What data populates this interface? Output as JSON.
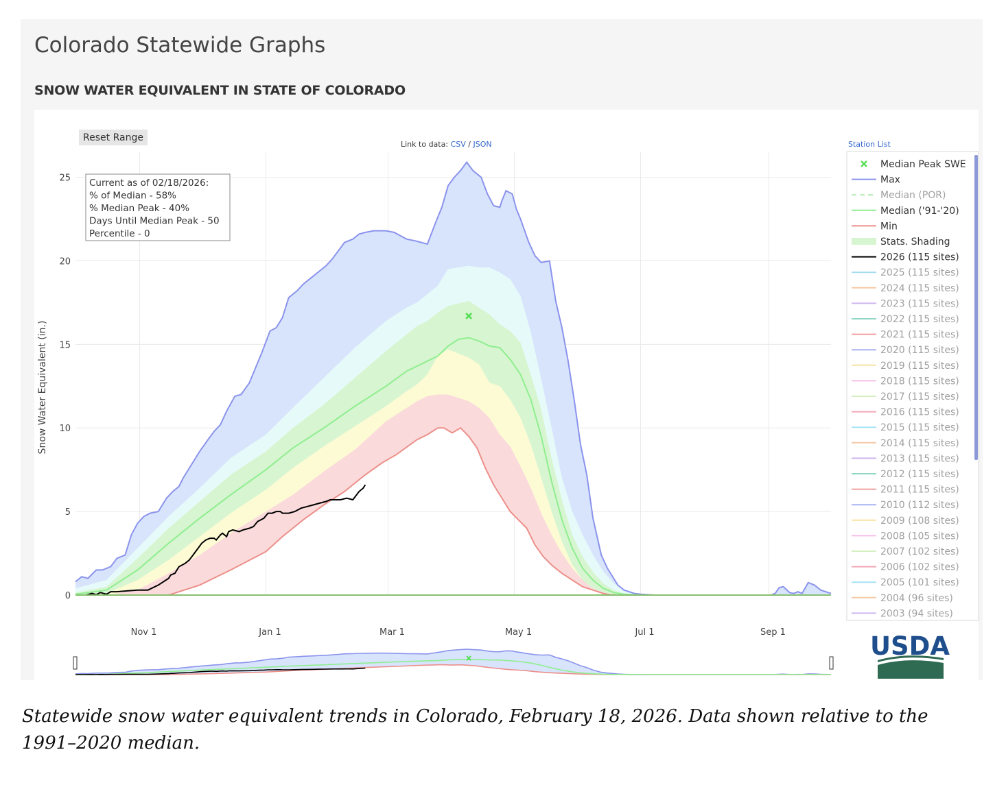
{
  "page": {
    "title": "Colorado Statewide Graphs",
    "chart_heading": "SNOW WATER EQUIVALENT IN STATE OF COLORADO",
    "caption": "Statewide snow water equivalent trends in Colorado, February 18, 2026. Data shown relative to the 1991–2020 median."
  },
  "controls": {
    "reset_label": "Reset Range",
    "link_prefix": "Link to data:",
    "link_csv": "CSV",
    "link_sep": "/",
    "link_json": "JSON",
    "station_list": "Station List"
  },
  "info_box": [
    "Current as of 02/18/2026:",
    "% of Median - 58%",
    "% Median Peak - 40%",
    "Days Until Median Peak - 50",
    "Percentile - 0"
  ],
  "logo_text": "USDA",
  "colors": {
    "max": "#8b93ec",
    "min": "#ec8f8a",
    "median": "#90ee90",
    "current": "#000000",
    "band_blue": "#d7e4fb",
    "band_cyan": "#e6fafa",
    "band_green": "#d6f5d0",
    "band_yellow": "#fdfbd3",
    "band_red": "#fadada",
    "link": "#3366cc"
  },
  "chart_data": {
    "type": "area",
    "ylabel": "Snow Water Equivalent (in.)",
    "xlabel": "",
    "ylim": [
      0,
      26.5
    ],
    "xrange": [
      "Oct 1",
      "Sep 30"
    ],
    "yticks": [
      0,
      5,
      10,
      15,
      20,
      25
    ],
    "xticks": [
      {
        "label": "Nov  1",
        "day": 31
      },
      {
        "label": "Jan  1",
        "day": 92
      },
      {
        "label": "Mar  1",
        "day": 151
      },
      {
        "label": "May  1",
        "day": 212
      },
      {
        "label": "Jul  1",
        "day": 273
      },
      {
        "label": "Sep  1",
        "day": 335
      }
    ],
    "grid": true,
    "legend_position": "right",
    "x_units": "days since Oct 1",
    "series": [
      {
        "name": "Max",
        "x": [
          0,
          3,
          6,
          10,
          13,
          17,
          20,
          24,
          27,
          30,
          33,
          36,
          40,
          44,
          47,
          50,
          52,
          56,
          60,
          64,
          67,
          70,
          73,
          77,
          80,
          84,
          87,
          90,
          94,
          97,
          100,
          103,
          107,
          110,
          114,
          118,
          121,
          124,
          127,
          130,
          134,
          137,
          140,
          144,
          147,
          150,
          154,
          157,
          160,
          164,
          167,
          170,
          174,
          177,
          180,
          183,
          186,
          189,
          192,
          196,
          199,
          202,
          205,
          206,
          208,
          211,
          213,
          215,
          219,
          222,
          225,
          229,
          232,
          235,
          238,
          241,
          244,
          247,
          250,
          254,
          257,
          260,
          262,
          265,
          270,
          273,
          277,
          280,
          285,
          290,
          300,
          310,
          320,
          330,
          336,
          338,
          340,
          342,
          345,
          347,
          349,
          351,
          354,
          357,
          360,
          365
        ],
        "y": [
          0.8,
          1.1,
          1.0,
          1.5,
          1.5,
          1.7,
          2.2,
          2.4,
          3.6,
          4.3,
          4.7,
          4.9,
          5.0,
          5.8,
          6.2,
          6.5,
          7.0,
          7.8,
          8.6,
          9.3,
          9.8,
          10.2,
          11.0,
          11.9,
          12.0,
          12.7,
          13.6,
          14.5,
          15.8,
          16.0,
          16.6,
          17.8,
          18.2,
          18.6,
          19.0,
          19.4,
          19.7,
          20.1,
          20.6,
          21.1,
          21.3,
          21.6,
          21.7,
          21.8,
          21.8,
          21.8,
          21.7,
          21.5,
          21.3,
          21.2,
          21.1,
          21.0,
          22.3,
          23.2,
          24.5,
          25.0,
          25.4,
          25.9,
          25.4,
          25.0,
          24.0,
          23.3,
          23.2,
          23.6,
          24.2,
          24.0,
          23.1,
          22.5,
          21.1,
          20.3,
          19.9,
          20.0,
          17.6,
          16.0,
          14.0,
          11.6,
          9.0,
          7.2,
          4.6,
          2.4,
          1.6,
          1.0,
          0.6,
          0.3,
          0.1,
          0.05,
          0.02,
          0,
          0,
          0,
          0,
          0,
          0,
          0,
          0,
          0.1,
          0.45,
          0.5,
          0.15,
          0.1,
          0.2,
          0.1,
          0.75,
          0.6,
          0.3,
          0.1
        ]
      },
      {
        "name": "Median ('91-'20)",
        "x": [
          0,
          15,
          30,
          45,
          60,
          75,
          92,
          105,
          120,
          135,
          150,
          160,
          170,
          175,
          180,
          185,
          190,
          195,
          200,
          205,
          210,
          215,
          220,
          225,
          230,
          235,
          240,
          245,
          250,
          255,
          260,
          265,
          273,
          280,
          300,
          365
        ],
        "y": [
          0.05,
          0.3,
          1.5,
          3.1,
          4.6,
          6.0,
          7.5,
          8.8,
          10.0,
          11.3,
          12.5,
          13.4,
          14.0,
          14.3,
          14.9,
          15.3,
          15.4,
          15.2,
          14.9,
          14.8,
          14.1,
          13.2,
          11.7,
          9.5,
          6.8,
          4.5,
          2.8,
          1.6,
          0.9,
          0.4,
          0.15,
          0.05,
          0,
          0,
          0,
          0
        ]
      },
      {
        "name": "Min",
        "x": [
          0,
          45,
          60,
          75,
          92,
          100,
          110,
          120,
          130,
          140,
          148,
          155,
          165,
          170,
          175,
          178,
          182,
          186,
          190,
          194,
          198,
          202,
          206,
          210,
          214,
          218,
          222,
          226,
          230,
          235,
          240,
          245,
          250,
          255,
          258,
          262,
          265,
          273,
          300,
          365
        ],
        "y": [
          0,
          0,
          0.6,
          1.5,
          2.6,
          3.5,
          4.5,
          5.4,
          6.2,
          7.2,
          7.9,
          8.4,
          9.3,
          9.6,
          10.0,
          10.0,
          9.7,
          10.0,
          9.5,
          8.8,
          7.6,
          6.6,
          5.8,
          5.0,
          4.5,
          4.0,
          3.0,
          2.3,
          1.8,
          1.3,
          0.9,
          0.5,
          0.3,
          0.1,
          0.02,
          0,
          0,
          0,
          0,
          0
        ]
      },
      {
        "name": "2026 (115 sites)",
        "x": [
          0,
          5,
          8,
          10,
          12,
          15,
          17,
          20,
          25,
          30,
          35,
          40,
          45,
          46,
          48,
          50,
          53,
          55,
          58,
          61,
          63,
          65,
          67,
          68,
          70,
          71,
          73,
          74,
          76,
          79,
          81,
          84,
          86,
          88,
          91,
          93,
          95,
          97,
          99,
          100,
          103,
          106,
          109,
          112,
          115,
          118,
          121,
          123,
          125,
          128,
          131,
          134,
          137,
          139,
          140
        ],
        "y": [
          0,
          0,
          0.1,
          0.02,
          0.15,
          0.05,
          0.2,
          0.2,
          0.25,
          0.3,
          0.3,
          0.6,
          1.0,
          1.2,
          1.3,
          1.7,
          1.9,
          2.1,
          2.6,
          3.1,
          3.3,
          3.4,
          3.4,
          3.3,
          3.6,
          3.7,
          3.5,
          3.8,
          3.9,
          3.8,
          3.9,
          4.0,
          4.1,
          4.4,
          4.6,
          4.9,
          4.9,
          5.0,
          5.0,
          4.9,
          4.9,
          5.0,
          5.2,
          5.3,
          5.4,
          5.5,
          5.6,
          5.7,
          5.7,
          5.7,
          5.8,
          5.7,
          6.2,
          6.4,
          6.6
        ]
      }
    ],
    "bands": [
      {
        "name": "Stats. Shading",
        "x": [
          0,
          15,
          30,
          45,
          60,
          75,
          92,
          105,
          120,
          135,
          150,
          160,
          165,
          170,
          175,
          180,
          190,
          195,
          200,
          205,
          210,
          215,
          220,
          225,
          230,
          235,
          240,
          245,
          250,
          255,
          260,
          265,
          270,
          273,
          300,
          365
        ],
        "p90": [
          0.4,
          0.9,
          2.8,
          4.7,
          6.4,
          8.2,
          9.6,
          11.2,
          13.0,
          14.8,
          16.4,
          17.2,
          17.5,
          18.0,
          18.5,
          19.5,
          19.7,
          19.6,
          19.6,
          19.3,
          18.9,
          17.9,
          15.7,
          12.9,
          10.0,
          7.0,
          5.0,
          3.6,
          2.4,
          1.4,
          0.7,
          0.3,
          0.1,
          0.02,
          0,
          0
        ],
        "p70": [
          0.15,
          0.5,
          2.2,
          4.0,
          5.6,
          7.2,
          8.6,
          10.0,
          11.4,
          13.0,
          14.6,
          15.6,
          16.1,
          16.4,
          16.9,
          17.3,
          17.6,
          17.2,
          16.8,
          16.2,
          15.8,
          15.1,
          13.2,
          11.1,
          8.2,
          5.7,
          3.6,
          2.3,
          1.4,
          0.7,
          0.3,
          0.1,
          0.03,
          0,
          0,
          0
        ],
        "p30": [
          0,
          0.1,
          0.9,
          2.1,
          3.5,
          4.9,
          6.3,
          7.6,
          8.9,
          10.1,
          11.3,
          12.2,
          12.6,
          13.2,
          14.3,
          14.7,
          14.2,
          13.8,
          12.7,
          12.5,
          11.7,
          10.6,
          9.0,
          7.0,
          5.0,
          3.2,
          1.8,
          0.9,
          0.4,
          0.15,
          0.03,
          0,
          0,
          0,
          0,
          0
        ],
        "p10": [
          0,
          0,
          0.3,
          1.3,
          2.4,
          3.7,
          5.0,
          6.0,
          7.4,
          8.7,
          10.4,
          11.2,
          11.6,
          11.9,
          12.0,
          12.0,
          11.6,
          11.2,
          10.6,
          9.6,
          8.9,
          7.7,
          6.4,
          4.9,
          3.6,
          2.5,
          1.6,
          0.9,
          0.4,
          0.15,
          0.03,
          0,
          0,
          0,
          0,
          0
        ]
      }
    ],
    "points": [
      {
        "name": "Median Peak SWE",
        "x": 190,
        "y": 16.7
      }
    ],
    "legend": [
      {
        "label": "Median Peak SWE",
        "kind": "marker",
        "color": "#55dd55",
        "active": true
      },
      {
        "label": "Max",
        "kind": "line",
        "color": "#8b93ec",
        "active": true
      },
      {
        "label": "Median (POR)",
        "kind": "dash",
        "color": "#b0ecb0",
        "active": false
      },
      {
        "label": "Median ('91-'20)",
        "kind": "line",
        "color": "#90ee90",
        "active": true
      },
      {
        "label": "Min",
        "kind": "line",
        "color": "#ec8f8a",
        "active": true
      },
      {
        "label": "Stats. Shading",
        "kind": "fill",
        "color": "#d6f5d0",
        "active": true
      },
      {
        "label": "2026 (115 sites)",
        "kind": "line",
        "color": "#000000",
        "active": true
      },
      {
        "label": "2025 (115 sites)",
        "kind": "line",
        "color": "#a6dcf2",
        "active": false
      },
      {
        "label": "2024 (115 sites)",
        "kind": "line",
        "color": "#f6c9a6",
        "active": false
      },
      {
        "label": "2023 (115 sites)",
        "kind": "line",
        "color": "#cdb6f0",
        "active": false
      },
      {
        "label": "2022 (115 sites)",
        "kind": "line",
        "color": "#8fd6c5",
        "active": false
      },
      {
        "label": "2021 (115 sites)",
        "kind": "line",
        "color": "#f0a0a0",
        "active": false
      },
      {
        "label": "2020 (115 sites)",
        "kind": "line",
        "color": "#a9b4f0",
        "active": false
      },
      {
        "label": "2019 (115 sites)",
        "kind": "line",
        "color": "#f8e4a0",
        "active": false
      },
      {
        "label": "2018 (115 sites)",
        "kind": "line",
        "color": "#f4c0e8",
        "active": false
      },
      {
        "label": "2017 (115 sites)",
        "kind": "line",
        "color": "#d6efc0",
        "active": false
      },
      {
        "label": "2016 (115 sites)",
        "kind": "line",
        "color": "#f3a6b6",
        "active": false
      },
      {
        "label": "2015 (115 sites)",
        "kind": "line",
        "color": "#a6e2f6",
        "active": false
      },
      {
        "label": "2014 (115 sites)",
        "kind": "line",
        "color": "#f6c9a6",
        "active": false
      },
      {
        "label": "2013 (115 sites)",
        "kind": "line",
        "color": "#cdb6f0",
        "active": false
      },
      {
        "label": "2012 (115 sites)",
        "kind": "line",
        "color": "#8fd6c5",
        "active": false
      },
      {
        "label": "2011 (115 sites)",
        "kind": "line",
        "color": "#f0a0a0",
        "active": false
      },
      {
        "label": "2010 (112 sites)",
        "kind": "line",
        "color": "#a9b4f0",
        "active": false
      },
      {
        "label": "2009 (108 sites)",
        "kind": "line",
        "color": "#f8e4a0",
        "active": false
      },
      {
        "label": "2008 (105 sites)",
        "kind": "line",
        "color": "#f4c0e8",
        "active": false
      },
      {
        "label": "2007 (102 sites)",
        "kind": "line",
        "color": "#d6efc0",
        "active": false
      },
      {
        "label": "2006 (102 sites)",
        "kind": "line",
        "color": "#f3a6b6",
        "active": false
      },
      {
        "label": "2005 (101 sites)",
        "kind": "line",
        "color": "#a6e2f6",
        "active": false
      },
      {
        "label": "2004 (96 sites)",
        "kind": "line",
        "color": "#f6c9a6",
        "active": false
      },
      {
        "label": "2003 (94 sites)",
        "kind": "line",
        "color": "#cdb6f0",
        "active": false
      }
    ]
  }
}
